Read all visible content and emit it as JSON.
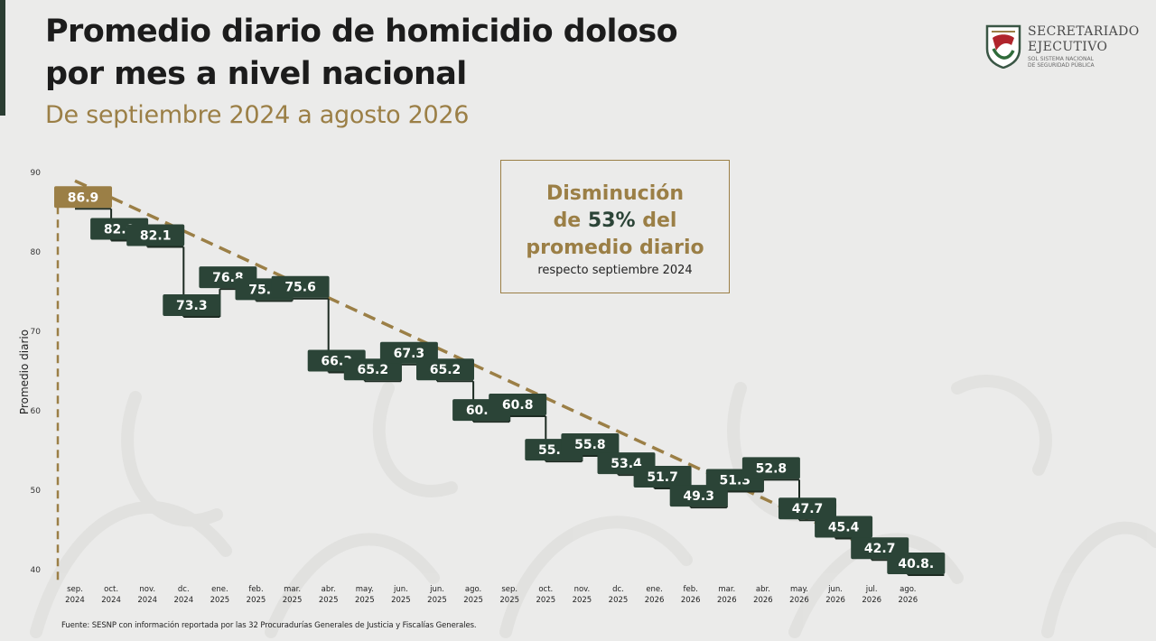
{
  "header": {
    "title_line1": "Promedio diario de homicidio doloso",
    "title_line2": "por mes a nivel nacional",
    "subtitle": "De septiembre 2024 a agosto 2026"
  },
  "logo": {
    "line1": "SECRETARIADO",
    "line2": "EJECUTIVO",
    "line3": "SOL SISTEMA NACIONAL",
    "line4": "DE SEGURIDAD PÚBLICA"
  },
  "annotation": {
    "line1": "Disminución",
    "line2_prefix": "de ",
    "line2_pct": "53%",
    "line2_suffix": " del",
    "line3": "promedio diario",
    "line4": "respecto septiembre 2024"
  },
  "source": "Fuente: SESNP con información reportada por las 32 Procuradurías Generales de Justicia y Fiscalías Generales.",
  "colors": {
    "bar_green": "#2b4437",
    "gold": "#9b7f46",
    "title": "#1c1c1c",
    "background": "#ebebea"
  },
  "chart_data": {
    "type": "line",
    "style": "step",
    "ylabel": "Promedio diario",
    "ylim": [
      40,
      90
    ],
    "yticks": [
      "40",
      "50",
      "60",
      "70",
      "80",
      "90"
    ],
    "categories": [
      [
        "sep.",
        "2024"
      ],
      [
        "oct.",
        "2024"
      ],
      [
        "nov.",
        "2024"
      ],
      [
        "dc.",
        "2024"
      ],
      [
        "ene.",
        "2025"
      ],
      [
        "feb.",
        "2025"
      ],
      [
        "mar.",
        "2025"
      ],
      [
        "abr.",
        "2025"
      ],
      [
        "may.",
        "2025"
      ],
      [
        "jun.",
        "2025"
      ],
      [
        "jun.",
        "2025"
      ],
      [
        "ago.",
        "2025"
      ],
      [
        "sep.",
        "2025"
      ],
      [
        "oct.",
        "2025"
      ],
      [
        "nov.",
        "2025"
      ],
      [
        "dc.",
        "2025"
      ],
      [
        "ene.",
        "2026"
      ],
      [
        "feb.",
        "2026"
      ],
      [
        "mar.",
        "2026"
      ],
      [
        "abr.",
        "2026"
      ],
      [
        "may.",
        "2026"
      ],
      [
        "jun.",
        "2026"
      ],
      [
        "jul.",
        "2026"
      ],
      [
        "ago.",
        "2026"
      ]
    ],
    "values": [
      86.9,
      82.9,
      82.1,
      73.3,
      76.8,
      75.3,
      75.6,
      66.3,
      65.2,
      67.3,
      65.2,
      60.1,
      60.8,
      55.1,
      55.8,
      53.4,
      51.7,
      49.3,
      51.3,
      52.8,
      47.7,
      45.4,
      42.7,
      40.8
    ],
    "labels": [
      "86.9",
      "82.9",
      "82.1",
      "73.3",
      "76.8",
      "75.3",
      "75.6",
      "66.3",
      "65.2",
      "67.3",
      "65.2",
      "60.1",
      "60.8",
      "55.1",
      "55.8",
      "53.4",
      "51.7",
      "49.3",
      "51.3",
      "52.8",
      "47.7",
      "45.4",
      "42.7",
      "40.8."
    ],
    "trend": {
      "from_value": 86.9,
      "to_value": 40.8,
      "style": "dashed-arrow"
    },
    "grid": false
  }
}
